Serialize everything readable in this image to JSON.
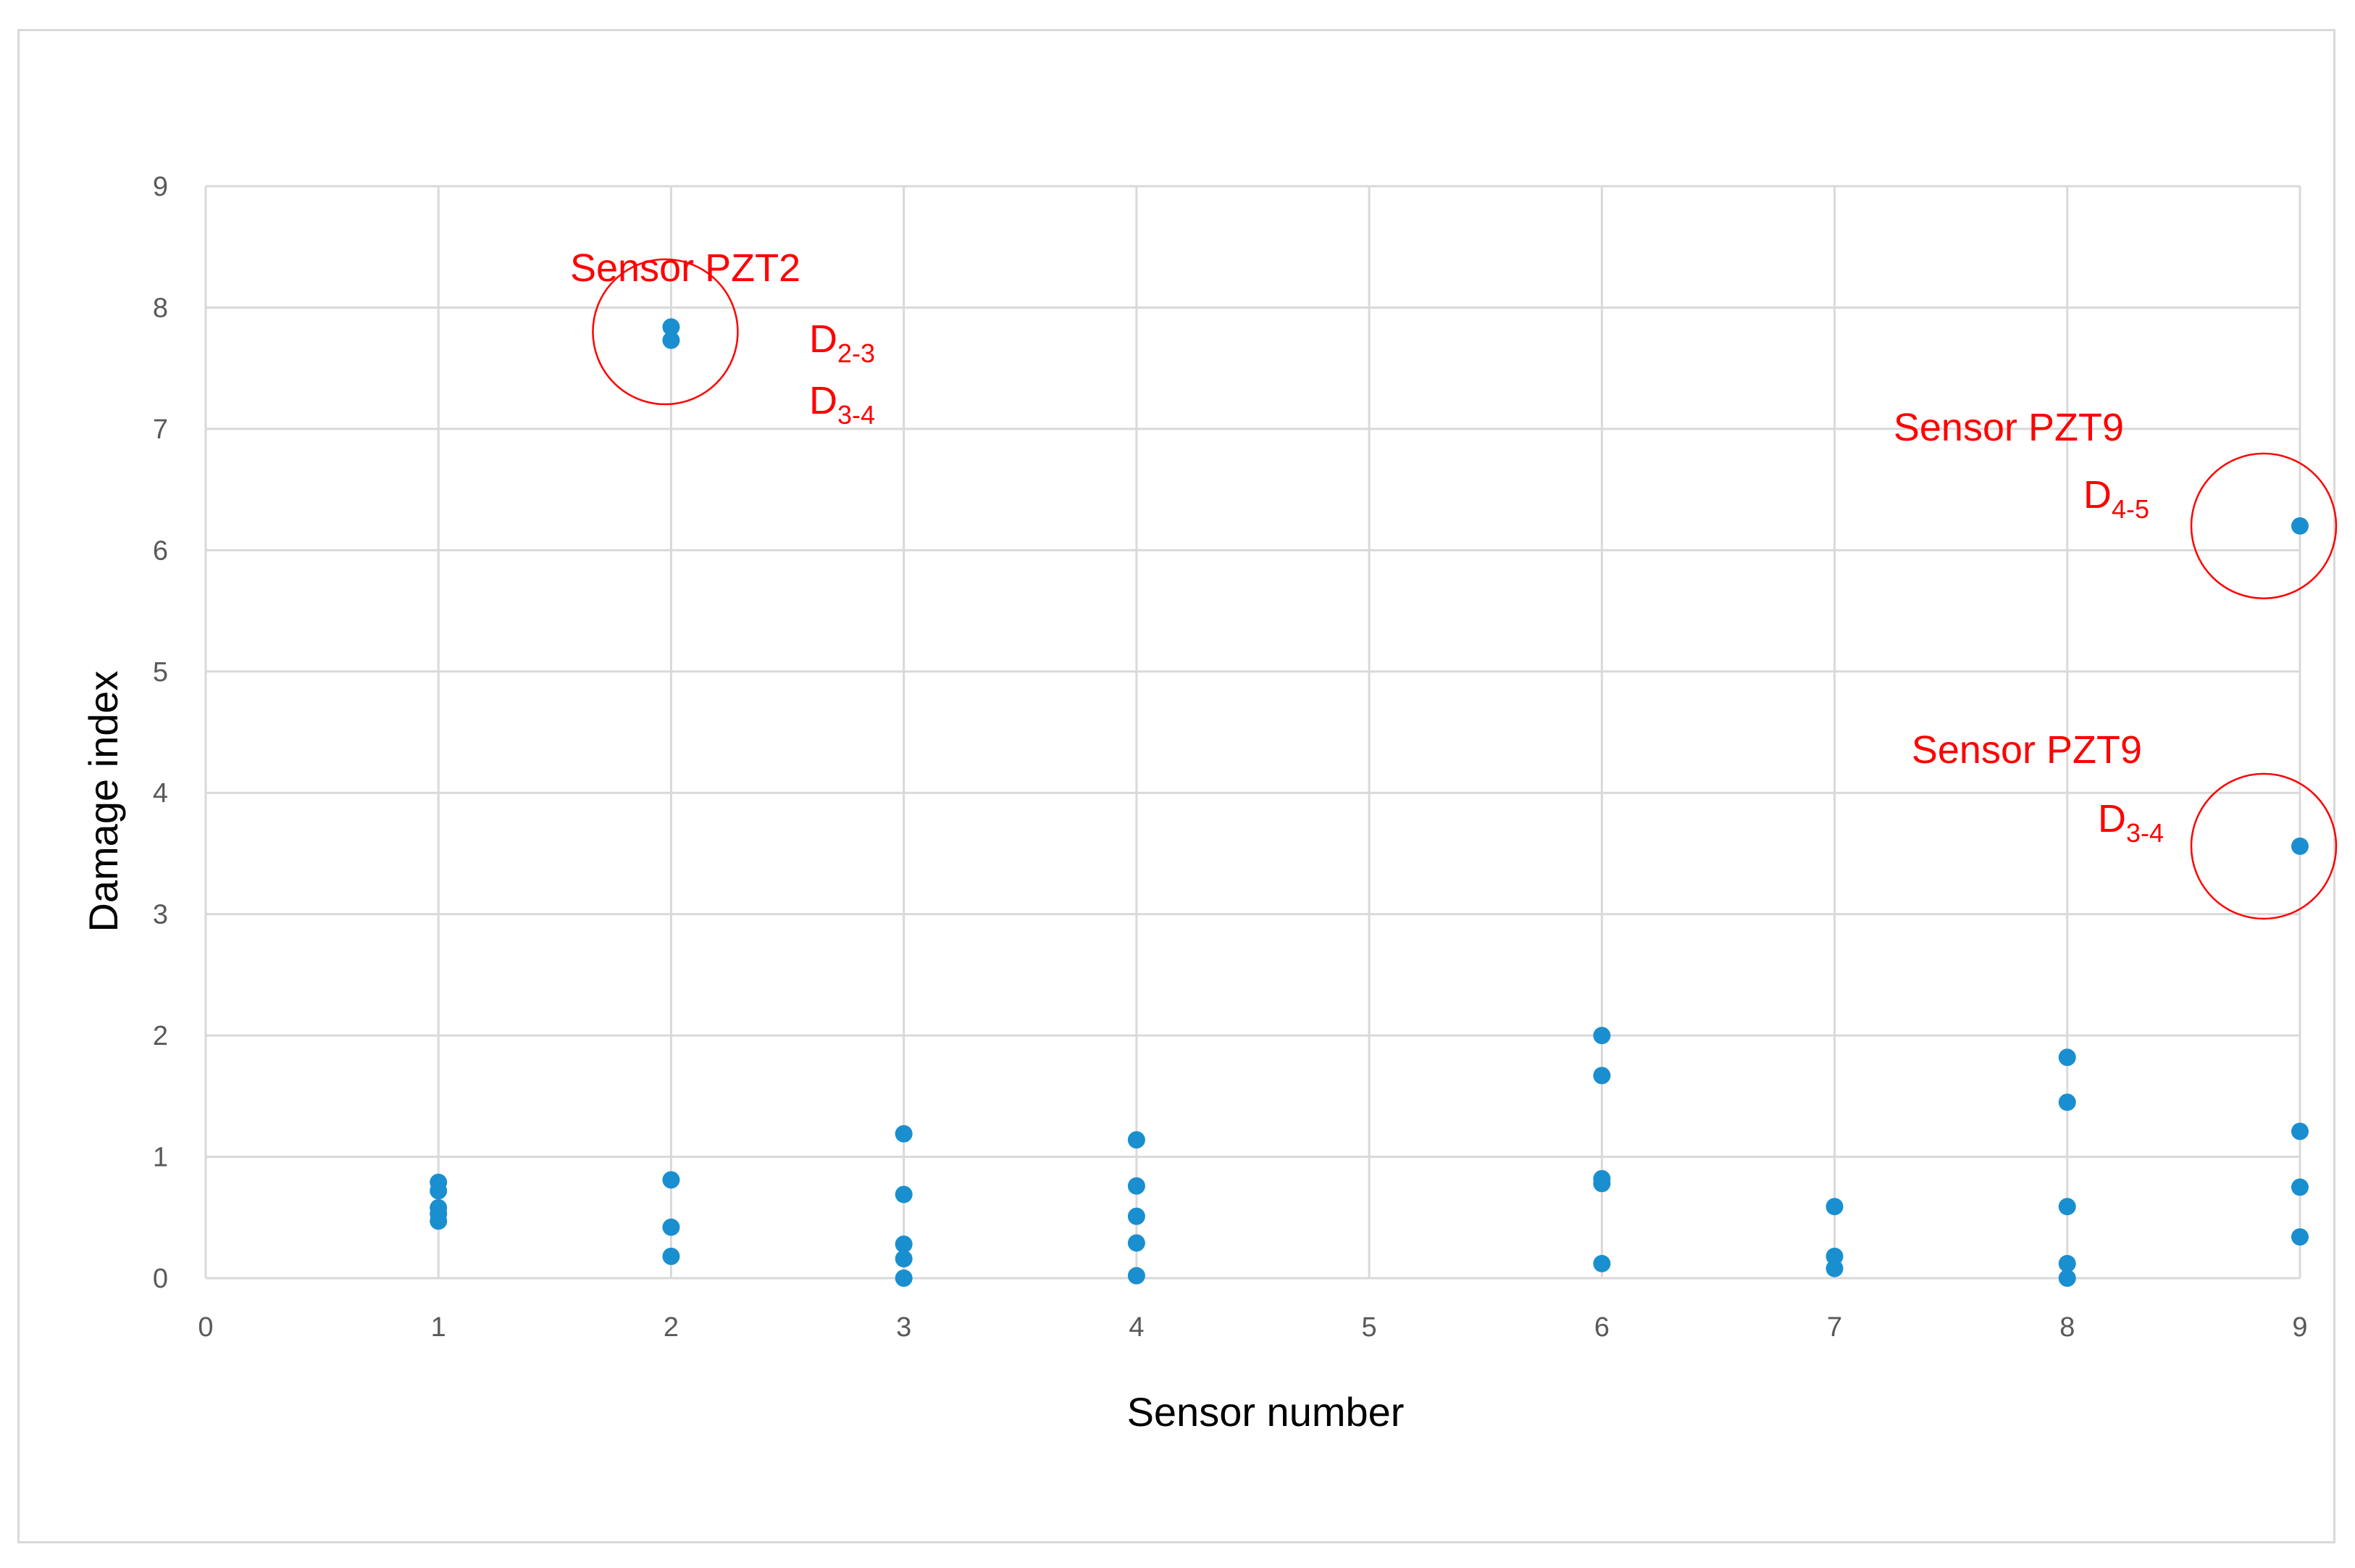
{
  "colors": {
    "marker": "#1a8fd0",
    "grid": "#d9d9d9",
    "annotation": "#ff0000",
    "tick_text": "#595959"
  },
  "chart_data": {
    "type": "scatter",
    "title": "",
    "xlabel": "Sensor number",
    "ylabel": "Damage index",
    "xlim": [
      0,
      9
    ],
    "ylim": [
      0,
      9
    ],
    "xticks": [
      "0",
      "1",
      "2",
      "3",
      "4",
      "5",
      "6",
      "7",
      "8",
      "9"
    ],
    "yticks": [
      "0",
      "1",
      "2",
      "3",
      "4",
      "5",
      "6",
      "7",
      "8",
      "9"
    ],
    "grid": true,
    "series": [
      {
        "name": "Damage index",
        "points": [
          {
            "x": 1,
            "y": 0.79
          },
          {
            "x": 1,
            "y": 0.72
          },
          {
            "x": 1,
            "y": 0.58
          },
          {
            "x": 1,
            "y": 0.53
          },
          {
            "x": 1,
            "y": 0.47
          },
          {
            "x": 2,
            "y": 7.84
          },
          {
            "x": 2,
            "y": 7.73
          },
          {
            "x": 2,
            "y": 0.81
          },
          {
            "x": 2,
            "y": 0.42
          },
          {
            "x": 2,
            "y": 0.18
          },
          {
            "x": 3,
            "y": 1.19
          },
          {
            "x": 3,
            "y": 0.69
          },
          {
            "x": 3,
            "y": 0.28
          },
          {
            "x": 3,
            "y": 0.16
          },
          {
            "x": 3,
            "y": 0.0
          },
          {
            "x": 4,
            "y": 1.14
          },
          {
            "x": 4,
            "y": 0.76
          },
          {
            "x": 4,
            "y": 0.51
          },
          {
            "x": 4,
            "y": 0.29
          },
          {
            "x": 4,
            "y": 0.02
          },
          {
            "x": 6,
            "y": 2.0
          },
          {
            "x": 6,
            "y": 1.67
          },
          {
            "x": 6,
            "y": 0.82
          },
          {
            "x": 6,
            "y": 0.78
          },
          {
            "x": 6,
            "y": 0.12
          },
          {
            "x": 7,
            "y": 0.59
          },
          {
            "x": 7,
            "y": 0.18
          },
          {
            "x": 7,
            "y": 0.08
          },
          {
            "x": 8,
            "y": 1.82
          },
          {
            "x": 8,
            "y": 1.45
          },
          {
            "x": 8,
            "y": 0.59
          },
          {
            "x": 8,
            "y": 0.12
          },
          {
            "x": 8,
            "y": 0.0
          },
          {
            "x": 9,
            "y": 6.2
          },
          {
            "x": 9,
            "y": 3.56
          },
          {
            "x": 9,
            "y": 1.21
          },
          {
            "x": 9,
            "y": 0.75
          },
          {
            "x": 9,
            "y": 0.34
          }
        ]
      }
    ],
    "annotations": [
      {
        "title": "Sensor PZT2",
        "labels": [
          {
            "main": "D",
            "sub": "2-3"
          },
          {
            "main": "D",
            "sub": "3-4"
          }
        ],
        "circle_center": {
          "x": 2,
          "y": 7.8
        }
      },
      {
        "title": "Sensor PZT9",
        "labels": [
          {
            "main": "D",
            "sub": "4-5"
          }
        ],
        "circle_center": {
          "x": 9,
          "y": 6.2
        }
      },
      {
        "title": "Sensor PZT9",
        "labels": [
          {
            "main": "D",
            "sub": "3-4"
          }
        ],
        "circle_center": {
          "x": 9,
          "y": 3.56
        }
      }
    ]
  }
}
